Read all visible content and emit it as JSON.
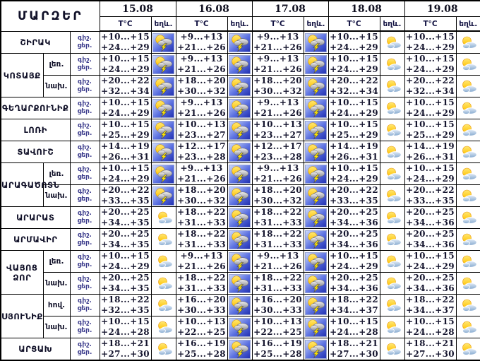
{
  "title": "ՄԱՐԶԵՐ",
  "columns": {
    "dates": [
      "15.08",
      "16.08",
      "17.08",
      "18.08",
      "19.08"
    ],
    "temp_header": "T°C",
    "weather_header": "եղև."
  },
  "labels": {
    "night": "գիշ.",
    "day": "ցեր."
  },
  "icon_legend": {
    "thunderstorm": "sun-cloud-lightning-icon",
    "partly_cloudy": "sun-cloud-icon"
  },
  "colors": {
    "border": "#000000",
    "text": "#15153a",
    "daynight_label": "#3c3c8c",
    "icon_bg_top": "#c9d9fb",
    "icon_bg_bottom": "#2a36b8",
    "sun": "#ffcf1f",
    "lightning": "#ffe600",
    "cloud_gray": "#bfbfbf",
    "cloud_blue": "#a9c3de"
  },
  "rows": [
    {
      "region": "ՇԻՐԱԿ",
      "sub": null,
      "rowspan": 1,
      "cells": [
        {
          "night": "+10...+15",
          "day": "+24...+29",
          "icon": "thunderstorm"
        },
        {
          "night": "+9...+13",
          "day": "+21...+26",
          "icon": "thunderstorm"
        },
        {
          "night": "+9...+13",
          "day": "+21...+26",
          "icon": "thunderstorm"
        },
        {
          "night": "+10...+15",
          "day": "+24...+29",
          "icon": "partly_cloudy"
        },
        {
          "night": "+10...+15",
          "day": "+24...+29",
          "icon": "partly_cloudy"
        }
      ]
    },
    {
      "region": "ԿՈՏԱՅՔ",
      "sub": "լեռ.",
      "rowspan": 2,
      "cells": [
        {
          "night": "+10...+15",
          "day": "+24...+29",
          "icon": "thunderstorm"
        },
        {
          "night": "+9...+13",
          "day": "+21...+26",
          "icon": "thunderstorm"
        },
        {
          "night": "+9...+13",
          "day": "+21...+26",
          "icon": "thunderstorm"
        },
        {
          "night": "+10...+15",
          "day": "+24...+29",
          "icon": "partly_cloudy"
        },
        {
          "night": "+10...+15",
          "day": "+24...+29",
          "icon": "partly_cloudy"
        }
      ]
    },
    {
      "region": null,
      "sub": "նախ.",
      "rowspan": 1,
      "cells": [
        {
          "night": "+20...+22",
          "day": "+32...+34",
          "icon": "thunderstorm"
        },
        {
          "night": "+18...+20",
          "day": "+30...+32",
          "icon": "thunderstorm"
        },
        {
          "night": "+18...+20",
          "day": "+30...+32",
          "icon": "thunderstorm"
        },
        {
          "night": "+20...+22",
          "day": "+32...+34",
          "icon": "partly_cloudy"
        },
        {
          "night": "+20...+22",
          "day": "+32...+34",
          "icon": "partly_cloudy"
        }
      ]
    },
    {
      "region": "ԳԵՂԱՐՔՈՒՆԻՔ",
      "sub": null,
      "rowspan": 1,
      "cells": [
        {
          "night": "+10...+15",
          "day": "+24...+29",
          "icon": "thunderstorm"
        },
        {
          "night": "+9...+13",
          "day": "+21...+26",
          "icon": "thunderstorm"
        },
        {
          "night": "+9...+13",
          "day": "+21...+26",
          "icon": "thunderstorm"
        },
        {
          "night": "+10...+15",
          "day": "+24...+29",
          "icon": "partly_cloudy"
        },
        {
          "night": "+10...+15",
          "day": "+24...+29",
          "icon": "partly_cloudy"
        }
      ]
    },
    {
      "region": "ԼՈՌԻ",
      "sub": null,
      "rowspan": 1,
      "cells": [
        {
          "night": "+10...+15",
          "day": "+25...+29",
          "icon": "thunderstorm"
        },
        {
          "night": "+10...+13",
          "day": "+23...+27",
          "icon": "thunderstorm"
        },
        {
          "night": "+10...+13",
          "day": "+23...+27",
          "icon": "thunderstorm"
        },
        {
          "night": "+10...+15",
          "day": "+25...+29",
          "icon": "partly_cloudy"
        },
        {
          "night": "+10...+15",
          "day": "+25...+29",
          "icon": "partly_cloudy"
        }
      ]
    },
    {
      "region": "ՏԱՎՈՒՇ",
      "sub": null,
      "rowspan": 1,
      "cells": [
        {
          "night": "+14...+19",
          "day": "+26...+31",
          "icon": "thunderstorm"
        },
        {
          "night": "+12...+17",
          "day": "+23...+28",
          "icon": "thunderstorm"
        },
        {
          "night": "+12...+17",
          "day": "+23...+28",
          "icon": "thunderstorm"
        },
        {
          "night": "+14...+19",
          "day": "+26...+31",
          "icon": "partly_cloudy"
        },
        {
          "night": "+14...+19",
          "day": "+26...+31",
          "icon": "partly_cloudy"
        }
      ]
    },
    {
      "region": "ԱՐԱԳԱԾՈՏՆ",
      "sub": "լեռ.",
      "rowspan": 2,
      "cells": [
        {
          "night": "+10...+15",
          "day": "+24...+29",
          "icon": "thunderstorm"
        },
        {
          "night": "+9...+13",
          "day": "+21...+26",
          "icon": "thunderstorm"
        },
        {
          "night": "+9...+13",
          "day": "+21...+26",
          "icon": "thunderstorm"
        },
        {
          "night": "+10...+15",
          "day": "+24...+29",
          "icon": "partly_cloudy"
        },
        {
          "night": "+10...+15",
          "day": "+24...+29",
          "icon": "partly_cloudy"
        }
      ]
    },
    {
      "region": null,
      "sub": "նախ.",
      "rowspan": 1,
      "cells": [
        {
          "night": "+20...+22",
          "day": "+33...+35",
          "icon": "thunderstorm"
        },
        {
          "night": "+18...+20",
          "day": "+30...+32",
          "icon": "thunderstorm"
        },
        {
          "night": "+18...+20",
          "day": "+30...+32",
          "icon": "thunderstorm"
        },
        {
          "night": "+20...+22",
          "day": "+33...+35",
          "icon": "partly_cloudy"
        },
        {
          "night": "+20...+22",
          "day": "+33...+35",
          "icon": "partly_cloudy"
        }
      ]
    },
    {
      "region": "ԱՐԱՐԱՏ",
      "sub": null,
      "rowspan": 1,
      "cells": [
        {
          "night": "+20...+25",
          "day": "+34...+35",
          "icon": "partly_cloudy"
        },
        {
          "night": "+18...+22",
          "day": "+31...+33",
          "icon": "thunderstorm"
        },
        {
          "night": "+18...+22",
          "day": "+31...+33",
          "icon": "thunderstorm"
        },
        {
          "night": "+20...+25",
          "day": "+34...+36",
          "icon": "partly_cloudy"
        },
        {
          "night": "+20...+25",
          "day": "+34...+36",
          "icon": "partly_cloudy"
        }
      ]
    },
    {
      "region": "ԱՐՄԱՎԻՐ",
      "sub": null,
      "rowspan": 1,
      "cells": [
        {
          "night": "+20...+25",
          "day": "+34...+35",
          "icon": "partly_cloudy"
        },
        {
          "night": "+18...+22",
          "day": "+31...+33",
          "icon": "thunderstorm"
        },
        {
          "night": "+18...+22",
          "day": "+31...+33",
          "icon": "thunderstorm"
        },
        {
          "night": "+20...+25",
          "day": "+34...+36",
          "icon": "partly_cloudy"
        },
        {
          "night": "+20...+25",
          "day": "+34...+36",
          "icon": "partly_cloudy"
        }
      ]
    },
    {
      "region": "ՎԱՅՈՑ ՁՈՐ",
      "sub": "լեռ.",
      "rowspan": 2,
      "cells": [
        {
          "night": "+10...+15",
          "day": "+24...+29",
          "icon": "partly_cloudy"
        },
        {
          "night": "+9...+13",
          "day": "+21...+26",
          "icon": "thunderstorm"
        },
        {
          "night": "+9...+13",
          "day": "+21...+26",
          "icon": "thunderstorm"
        },
        {
          "night": "+10...+15",
          "day": "+24...+29",
          "icon": "partly_cloudy"
        },
        {
          "night": "+10...+15",
          "day": "+24...+29",
          "icon": "partly_cloudy"
        }
      ]
    },
    {
      "region": null,
      "sub": "նախ.",
      "rowspan": 1,
      "cells": [
        {
          "night": "+20...+25",
          "day": "+34...+35",
          "icon": "partly_cloudy"
        },
        {
          "night": "+18...+22",
          "day": "+31...+33",
          "icon": "thunderstorm"
        },
        {
          "night": "+18...+22",
          "day": "+31...+33",
          "icon": "thunderstorm"
        },
        {
          "night": "+20...+25",
          "day": "+34...+36",
          "icon": "partly_cloudy"
        },
        {
          "night": "+20...+25",
          "day": "+34...+36",
          "icon": "partly_cloudy"
        }
      ]
    },
    {
      "region": "ՍՅՈՒՆԻՔ",
      "sub": "հով.",
      "rowspan": 2,
      "cells": [
        {
          "night": "+18...+22",
          "day": "+32...+35",
          "icon": "partly_cloudy"
        },
        {
          "night": "+16...+20",
          "day": "+30...+33",
          "icon": "thunderstorm"
        },
        {
          "night": "+16...+20",
          "day": "+30...+33",
          "icon": "thunderstorm"
        },
        {
          "night": "+18...+22",
          "day": "+34...+37",
          "icon": "partly_cloudy"
        },
        {
          "night": "+18...+22",
          "day": "+34...+37",
          "icon": "partly_cloudy"
        }
      ]
    },
    {
      "region": null,
      "sub": "նախ.",
      "rowspan": 1,
      "cells": [
        {
          "night": "+10...+15",
          "day": "+24...+28",
          "icon": "partly_cloudy"
        },
        {
          "night": "+10...+13",
          "day": "+22...+25",
          "icon": "thunderstorm"
        },
        {
          "night": "+10...+13",
          "day": "+22...+25",
          "icon": "thunderstorm"
        },
        {
          "night": "+10...+15",
          "day": "+24...+28",
          "icon": "partly_cloudy"
        },
        {
          "night": "+10...+15",
          "day": "+24...+28",
          "icon": "partly_cloudy"
        }
      ]
    },
    {
      "region": "ԱՐՑԱԽ",
      "sub": null,
      "rowspan": 1,
      "cells": [
        {
          "night": "+18...+21",
          "day": "+27...+30",
          "icon": "partly_cloudy"
        },
        {
          "night": "+16...+19",
          "day": "+25...+28",
          "icon": "thunderstorm"
        },
        {
          "night": "+16...+19",
          "day": "+25...+28",
          "icon": "thunderstorm"
        },
        {
          "night": "+18...+21",
          "day": "+27...+30",
          "icon": "partly_cloudy"
        },
        {
          "night": "+18...+21",
          "day": "+27...+30",
          "icon": "partly_cloudy"
        }
      ]
    }
  ]
}
